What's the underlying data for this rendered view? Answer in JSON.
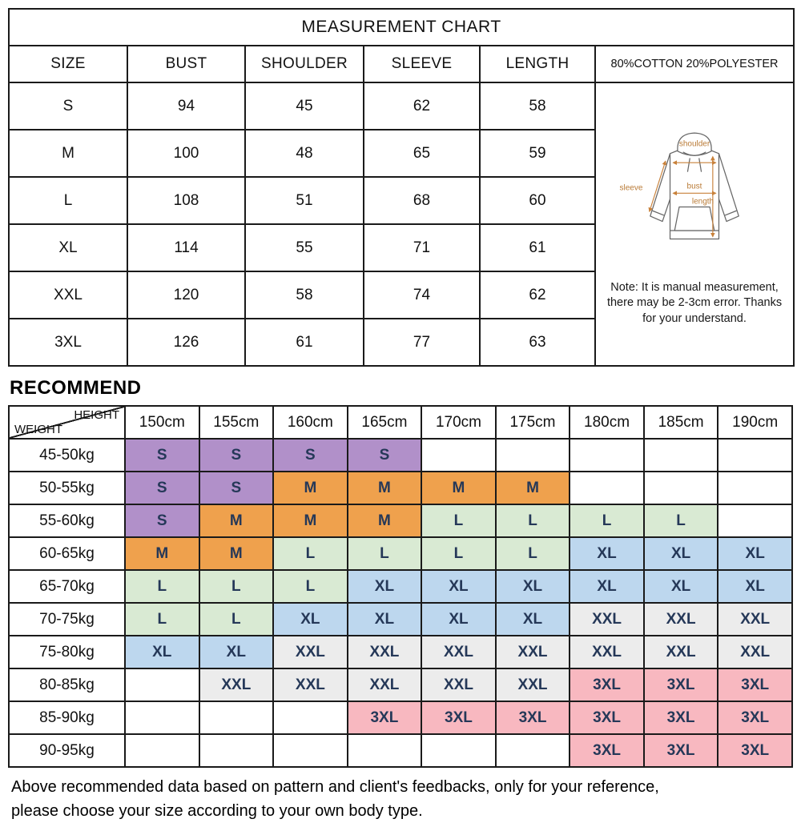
{
  "measurement_chart": {
    "title": "MEASUREMENT CHART",
    "headers": [
      "SIZE",
      "BUST",
      "SHOULDER",
      "SLEEVE",
      "LENGTH"
    ],
    "fabric": "80%COTTON 20%POLYESTER",
    "rows": [
      {
        "size": "S",
        "bust": "94",
        "shoulder": "45",
        "sleeve": "62",
        "length": "58"
      },
      {
        "size": "M",
        "bust": "100",
        "shoulder": "48",
        "sleeve": "65",
        "length": "59"
      },
      {
        "size": "L",
        "bust": "108",
        "shoulder": "51",
        "sleeve": "68",
        "length": "60"
      },
      {
        "size": "XL",
        "bust": "114",
        "shoulder": "55",
        "sleeve": "71",
        "length": "61"
      },
      {
        "size": "XXL",
        "bust": "120",
        "shoulder": "58",
        "sleeve": "74",
        "length": "62"
      },
      {
        "size": "3XL",
        "bust": "126",
        "shoulder": "61",
        "sleeve": "77",
        "length": "63"
      }
    ],
    "diagram_labels": {
      "shoulder": "shoulder",
      "sleeve": "sleeve",
      "bust": "bust",
      "length": "length"
    },
    "note": "Note: It is manual measurement, there may be 2-3cm error. Thanks for your understand."
  },
  "recommend": {
    "heading": "RECOMMEND",
    "corner": {
      "top": "HEIGHT",
      "bottom": "WEIGHT"
    },
    "height_columns": [
      "150cm",
      "155cm",
      "160cm",
      "165cm",
      "170cm",
      "175cm",
      "180cm",
      "185cm",
      "190cm"
    ],
    "rows": [
      {
        "weight": "45-50kg",
        "sizes": [
          "S",
          "S",
          "S",
          "S",
          "",
          "",
          "",
          "",
          ""
        ]
      },
      {
        "weight": "50-55kg",
        "sizes": [
          "S",
          "S",
          "M",
          "M",
          "M",
          "M",
          "",
          "",
          ""
        ]
      },
      {
        "weight": "55-60kg",
        "sizes": [
          "S",
          "M",
          "M",
          "M",
          "L",
          "L",
          "L",
          "L",
          ""
        ]
      },
      {
        "weight": "60-65kg",
        "sizes": [
          "M",
          "M",
          "L",
          "L",
          "L",
          "L",
          "XL",
          "XL",
          "XL"
        ]
      },
      {
        "weight": "65-70kg",
        "sizes": [
          "L",
          "L",
          "L",
          "XL",
          "XL",
          "XL",
          "XL",
          "XL",
          "XL"
        ]
      },
      {
        "weight": "70-75kg",
        "sizes": [
          "L",
          "L",
          "XL",
          "XL",
          "XL",
          "XL",
          "XXL",
          "XXL",
          "XXL"
        ]
      },
      {
        "weight": "75-80kg",
        "sizes": [
          "XL",
          "XL",
          "XXL",
          "XXL",
          "XXL",
          "XXL",
          "XXL",
          "XXL",
          "XXL"
        ]
      },
      {
        "weight": "80-85kg",
        "sizes": [
          "",
          "XXL",
          "XXL",
          "XXL",
          "XXL",
          "XXL",
          "3XL",
          "3XL",
          "3XL"
        ]
      },
      {
        "weight": "85-90kg",
        "sizes": [
          "",
          "",
          "",
          "3XL",
          "3XL",
          "3XL",
          "3XL",
          "3XL",
          "3XL"
        ]
      },
      {
        "weight": "90-95kg",
        "sizes": [
          "",
          "",
          "",
          "",
          "",
          "",
          "3XL",
          "3XL",
          "3XL"
        ]
      }
    ],
    "size_colors": {
      "S": "#b190c9",
      "M": "#efa14d",
      "L": "#d9ead3",
      "XL": "#bdd7ee",
      "XXL": "#ececec",
      "3XL": "#f8b8c0"
    }
  },
  "footer": {
    "line1": "Above recommended data based on pattern and client's feedbacks, only for your reference,",
    "line2": "please choose your size according to your own body type."
  }
}
